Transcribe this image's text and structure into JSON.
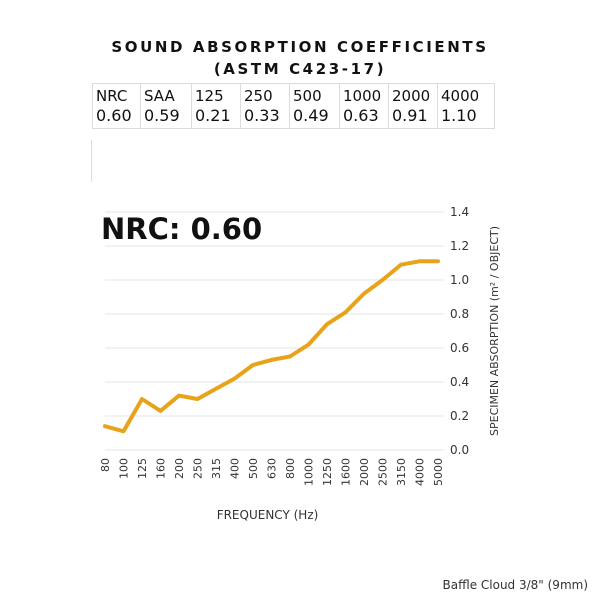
{
  "header": {
    "title_line1": "SOUND ABSORPTION COEFFICIENTS",
    "title_line2": "(ASTM C423-17)"
  },
  "coefficients": {
    "headers": [
      "NRC",
      "SAA",
      "125",
      "250",
      "500",
      "1000",
      "2000",
      "4000"
    ],
    "values": [
      "0.60",
      "0.59",
      "0.21",
      "0.33",
      "0.49",
      "0.63",
      "0.91",
      "1.10"
    ]
  },
  "big_label": "NRC: 0.60",
  "caption": "Baffle Cloud 3/8\" (9mm)",
  "colors": {
    "line": "#e8a31a",
    "grid": "#e6e6e6",
    "text": "#333333"
  },
  "chart_data": {
    "type": "line",
    "title": "",
    "xlabel": "FREQUENCY (Hz)",
    "ylabel": "SPECIMEN ABSORPTION (m² / OBJECT)",
    "categories": [
      "80",
      "100",
      "125",
      "160",
      "200",
      "250",
      "315",
      "400",
      "500",
      "630",
      "800",
      "1000",
      "1250",
      "1600",
      "2000",
      "2500",
      "3150",
      "4000",
      "5000"
    ],
    "series": [
      {
        "values": [
          0.14,
          0.11,
          0.3,
          0.23,
          0.32,
          0.3,
          0.36,
          0.42,
          0.5,
          0.53,
          0.55,
          0.62,
          0.74,
          0.81,
          0.92,
          1.0,
          1.09,
          1.11,
          1.11
        ]
      }
    ],
    "ylim": [
      0,
      1.4
    ],
    "yticks": [
      "0.0",
      "0.2",
      "0.4",
      "0.6",
      "0.8",
      "1.0",
      "1.2",
      "1.4"
    ],
    "grid": true,
    "y_axis_side": "right"
  }
}
